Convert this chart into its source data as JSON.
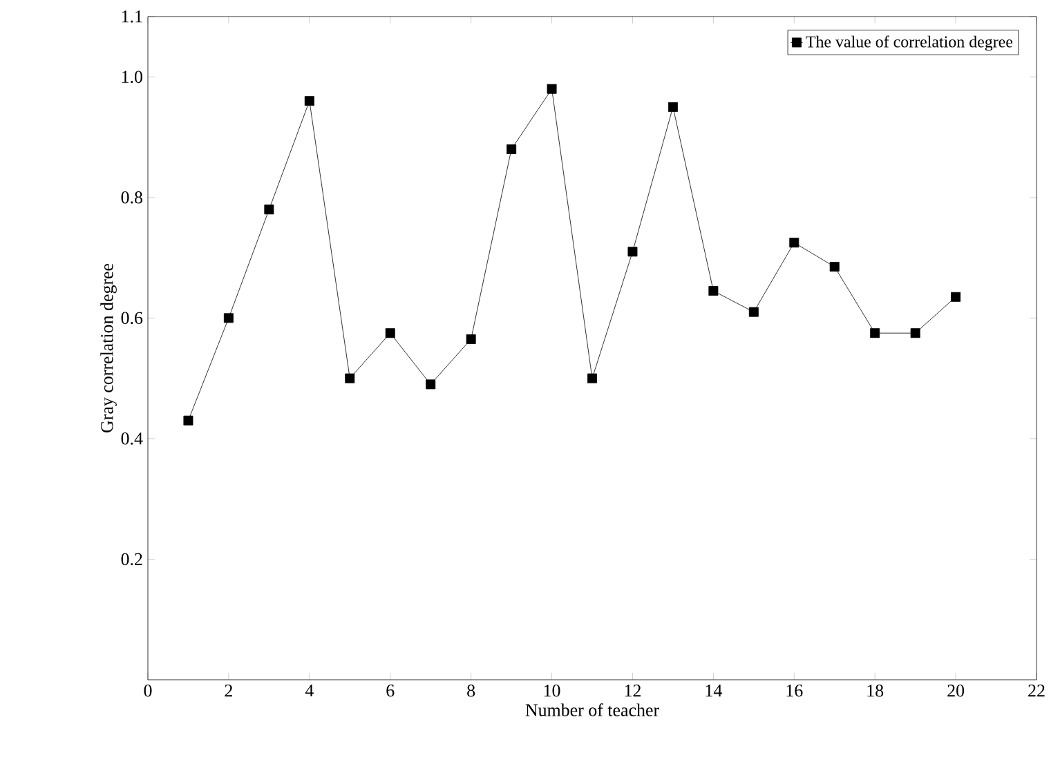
{
  "chart_data": {
    "type": "line",
    "xlabel": "Number of teacher",
    "ylabel": "Gray correlation degree",
    "x": [
      1,
      2,
      3,
      4,
      5,
      6,
      7,
      8,
      9,
      10,
      11,
      12,
      13,
      14,
      15,
      16,
      17,
      18,
      19,
      20
    ],
    "series": [
      {
        "name": "The value of correlation degree",
        "color": "#000000",
        "values": [
          0.43,
          0.6,
          0.78,
          0.96,
          0.5,
          0.575,
          0.49,
          0.565,
          0.88,
          0.98,
          0.5,
          0.71,
          0.95,
          0.645,
          0.61,
          0.725,
          0.685,
          0.575,
          0.575,
          0.635
        ]
      }
    ],
    "xlim": [
      0,
      22
    ],
    "xticks": [
      0,
      2,
      4,
      6,
      8,
      10,
      12,
      14,
      16,
      18,
      20,
      22
    ],
    "ylim": [
      0,
      1.1
    ],
    "yticks": [
      0.2,
      0.4,
      0.6,
      0.8,
      {
        "value": 1,
        "label": "1.0"
      },
      1.1
    ],
    "marker": "square",
    "line_style": "solid",
    "legend": "top right",
    "grid": false
  }
}
